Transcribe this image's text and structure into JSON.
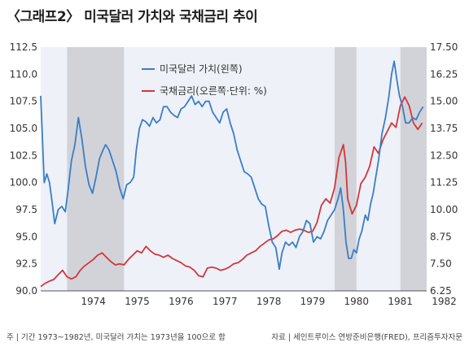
{
  "title": "〈그래프2〉 미국달러 가치와 국채금리 추이",
  "footnote_left": "주 | 기간 1973~1982년, 미국달러 가치는 1973년을 100으로 함",
  "footnote_right": "자료 | 세인트루이스 연방준비은행(FRED), 프리즘투자자문",
  "chart_data": {
    "type": "line",
    "legend_position": "top-left",
    "x_ticks": [
      "1974",
      "1975",
      "1976",
      "1977",
      "1978",
      "1979",
      "1980",
      "1981",
      "1982"
    ],
    "xlim": [
      1973.3,
      1982.1
    ],
    "y_left": {
      "ylim": [
        90.0,
        112.5
      ],
      "ticks": [
        "90.0",
        "92.5",
        "95.0",
        "97.5",
        "100.0",
        "102.5",
        "105.0",
        "107.5",
        "110.0",
        "112.5"
      ]
    },
    "y_right": {
      "ylim": [
        6.25,
        17.5
      ],
      "ticks": [
        "6.25",
        "7.50",
        "8.75",
        "10.00",
        "11.25",
        "12.50",
        "13.75",
        "15.00",
        "16.25",
        "17.50"
      ]
    },
    "shaded_periods": [
      [
        1973.9,
        1975.2
      ],
      [
        1980.0,
        1980.5
      ],
      [
        1981.5,
        1982.1
      ]
    ],
    "colors": {
      "usd": "#3a7ec6",
      "yield": "#d2363c",
      "shade": "#d2d3d8",
      "plot_bg": "#eef1f8"
    },
    "series": [
      {
        "name": "미국달러 가치(왼쪽)",
        "axis": "left",
        "points": [
          [
            1973.3,
            108.0
          ],
          [
            1973.38,
            100.0
          ],
          [
            1973.44,
            100.8
          ],
          [
            1973.5,
            100.0
          ],
          [
            1973.56,
            98.2
          ],
          [
            1973.62,
            96.2
          ],
          [
            1973.7,
            97.5
          ],
          [
            1973.78,
            97.8
          ],
          [
            1973.86,
            97.3
          ],
          [
            1973.93,
            99.5
          ],
          [
            1974.0,
            102.0
          ],
          [
            1974.08,
            103.5
          ],
          [
            1974.16,
            106.0
          ],
          [
            1974.24,
            104.0
          ],
          [
            1974.32,
            101.5
          ],
          [
            1974.4,
            99.8
          ],
          [
            1974.48,
            99.0
          ],
          [
            1974.56,
            100.5
          ],
          [
            1974.64,
            102.2
          ],
          [
            1974.72,
            103.0
          ],
          [
            1974.78,
            103.5
          ],
          [
            1974.86,
            103.0
          ],
          [
            1974.94,
            102.0
          ],
          [
            1975.02,
            101.0
          ],
          [
            1975.1,
            99.5
          ],
          [
            1975.18,
            98.5
          ],
          [
            1975.26,
            99.8
          ],
          [
            1975.34,
            100.0
          ],
          [
            1975.42,
            100.5
          ],
          [
            1975.48,
            103.0
          ],
          [
            1975.55,
            105.0
          ],
          [
            1975.62,
            105.8
          ],
          [
            1975.7,
            105.6
          ],
          [
            1975.78,
            105.2
          ],
          [
            1975.86,
            106.0
          ],
          [
            1975.94,
            105.5
          ],
          [
            1976.02,
            105.8
          ],
          [
            1976.1,
            107.0
          ],
          [
            1976.18,
            107.0
          ],
          [
            1976.26,
            106.5
          ],
          [
            1976.34,
            106.2
          ],
          [
            1976.42,
            106.0
          ],
          [
            1976.5,
            106.8
          ],
          [
            1976.58,
            107.0
          ],
          [
            1976.66,
            107.5
          ],
          [
            1976.74,
            108.0
          ],
          [
            1976.82,
            107.2
          ],
          [
            1976.9,
            107.5
          ],
          [
            1976.98,
            107.0
          ],
          [
            1977.06,
            107.5
          ],
          [
            1977.14,
            107.5
          ],
          [
            1977.22,
            106.5
          ],
          [
            1977.3,
            106.0
          ],
          [
            1977.38,
            105.5
          ],
          [
            1977.46,
            106.5
          ],
          [
            1977.54,
            106.8
          ],
          [
            1977.62,
            105.5
          ],
          [
            1977.7,
            104.5
          ],
          [
            1977.78,
            103.0
          ],
          [
            1977.86,
            102.0
          ],
          [
            1977.94,
            101.0
          ],
          [
            1978.02,
            100.8
          ],
          [
            1978.1,
            100.5
          ],
          [
            1978.18,
            99.5
          ],
          [
            1978.26,
            98.5
          ],
          [
            1978.34,
            98.0
          ],
          [
            1978.42,
            97.8
          ],
          [
            1978.5,
            96.0
          ],
          [
            1978.58,
            94.5
          ],
          [
            1978.66,
            94.0
          ],
          [
            1978.74,
            92.0
          ],
          [
            1978.8,
            93.5
          ],
          [
            1978.88,
            94.5
          ],
          [
            1978.96,
            94.2
          ],
          [
            1979.04,
            94.5
          ],
          [
            1979.12,
            94.0
          ],
          [
            1979.2,
            95.0
          ],
          [
            1979.28,
            95.5
          ],
          [
            1979.36,
            96.5
          ],
          [
            1979.44,
            96.2
          ],
          [
            1979.52,
            94.5
          ],
          [
            1979.6,
            95.0
          ],
          [
            1979.68,
            94.8
          ],
          [
            1979.76,
            95.5
          ],
          [
            1979.84,
            96.5
          ],
          [
            1979.92,
            97.0
          ],
          [
            1980.0,
            97.5
          ],
          [
            1980.08,
            98.5
          ],
          [
            1980.14,
            99.5
          ],
          [
            1980.2,
            97.5
          ],
          [
            1980.26,
            94.5
          ],
          [
            1980.32,
            93.0
          ],
          [
            1980.38,
            93.0
          ],
          [
            1980.44,
            93.8
          ],
          [
            1980.5,
            93.5
          ],
          [
            1980.56,
            94.8
          ],
          [
            1980.62,
            95.5
          ],
          [
            1980.7,
            97.0
          ],
          [
            1980.76,
            96.5
          ],
          [
            1980.82,
            98.0
          ],
          [
            1980.88,
            99.0
          ],
          [
            1980.94,
            100.5
          ],
          [
            1981.0,
            102.0
          ],
          [
            1981.08,
            104.5
          ],
          [
            1981.16,
            106.0
          ],
          [
            1981.24,
            108.0
          ],
          [
            1981.3,
            110.0
          ],
          [
            1981.36,
            111.2
          ],
          [
            1981.42,
            109.5
          ],
          [
            1981.48,
            108.0
          ],
          [
            1981.55,
            107.0
          ],
          [
            1981.62,
            105.5
          ],
          [
            1981.7,
            105.5
          ],
          [
            1981.78,
            106.0
          ],
          [
            1981.86,
            105.8
          ],
          [
            1981.94,
            106.5
          ],
          [
            1982.02,
            107.0
          ]
        ]
      },
      {
        "name": "국채금리(오른쪽·단위: %)",
        "axis": "right",
        "points": [
          [
            1973.3,
            6.45
          ],
          [
            1973.4,
            6.6
          ],
          [
            1973.5,
            6.7
          ],
          [
            1973.6,
            6.78
          ],
          [
            1973.7,
            7.0
          ],
          [
            1973.8,
            7.2
          ],
          [
            1973.9,
            6.9
          ],
          [
            1974.0,
            6.8
          ],
          [
            1974.1,
            6.9
          ],
          [
            1974.2,
            7.2
          ],
          [
            1974.3,
            7.4
          ],
          [
            1974.4,
            7.55
          ],
          [
            1974.5,
            7.7
          ],
          [
            1974.6,
            7.9
          ],
          [
            1974.7,
            8.0
          ],
          [
            1974.8,
            7.8
          ],
          [
            1974.9,
            7.6
          ],
          [
            1975.0,
            7.45
          ],
          [
            1975.1,
            7.5
          ],
          [
            1975.2,
            7.45
          ],
          [
            1975.3,
            7.7
          ],
          [
            1975.4,
            7.9
          ],
          [
            1975.5,
            8.1
          ],
          [
            1975.6,
            8.0
          ],
          [
            1975.7,
            8.3
          ],
          [
            1975.8,
            8.1
          ],
          [
            1975.9,
            7.95
          ],
          [
            1976.0,
            7.9
          ],
          [
            1976.1,
            7.8
          ],
          [
            1976.2,
            7.9
          ],
          [
            1976.3,
            7.75
          ],
          [
            1976.4,
            7.65
          ],
          [
            1976.5,
            7.55
          ],
          [
            1976.6,
            7.4
          ],
          [
            1976.7,
            7.35
          ],
          [
            1976.8,
            7.2
          ],
          [
            1976.9,
            6.95
          ],
          [
            1977.0,
            6.9
          ],
          [
            1977.1,
            7.3
          ],
          [
            1977.2,
            7.35
          ],
          [
            1977.3,
            7.3
          ],
          [
            1977.4,
            7.2
          ],
          [
            1977.5,
            7.25
          ],
          [
            1977.6,
            7.35
          ],
          [
            1977.7,
            7.5
          ],
          [
            1977.8,
            7.55
          ],
          [
            1977.9,
            7.7
          ],
          [
            1978.0,
            7.9
          ],
          [
            1978.1,
            8.0
          ],
          [
            1978.2,
            8.1
          ],
          [
            1978.3,
            8.3
          ],
          [
            1978.4,
            8.45
          ],
          [
            1978.5,
            8.6
          ],
          [
            1978.6,
            8.65
          ],
          [
            1978.7,
            8.8
          ],
          [
            1978.8,
            9.0
          ],
          [
            1978.9,
            9.05
          ],
          [
            1979.0,
            8.95
          ],
          [
            1979.1,
            9.05
          ],
          [
            1979.2,
            9.1
          ],
          [
            1979.3,
            9.05
          ],
          [
            1979.4,
            8.95
          ],
          [
            1979.5,
            9.0
          ],
          [
            1979.6,
            9.4
          ],
          [
            1979.7,
            10.2
          ],
          [
            1979.8,
            10.5
          ],
          [
            1979.9,
            10.3
          ],
          [
            1980.0,
            11.0
          ],
          [
            1980.1,
            12.4
          ],
          [
            1980.2,
            13.0
          ],
          [
            1980.25,
            12.2
          ],
          [
            1980.3,
            10.5
          ],
          [
            1980.4,
            9.8
          ],
          [
            1980.5,
            10.2
          ],
          [
            1980.6,
            11.2
          ],
          [
            1980.7,
            11.5
          ],
          [
            1980.8,
            12.0
          ],
          [
            1980.9,
            12.9
          ],
          [
            1981.0,
            12.6
          ],
          [
            1981.1,
            13.2
          ],
          [
            1981.2,
            13.6
          ],
          [
            1981.3,
            14.0
          ],
          [
            1981.4,
            13.8
          ],
          [
            1981.5,
            14.8
          ],
          [
            1981.6,
            15.2
          ],
          [
            1981.7,
            14.8
          ],
          [
            1981.8,
            14.0
          ],
          [
            1981.9,
            13.7
          ],
          [
            1982.0,
            14.0
          ]
        ]
      }
    ]
  }
}
